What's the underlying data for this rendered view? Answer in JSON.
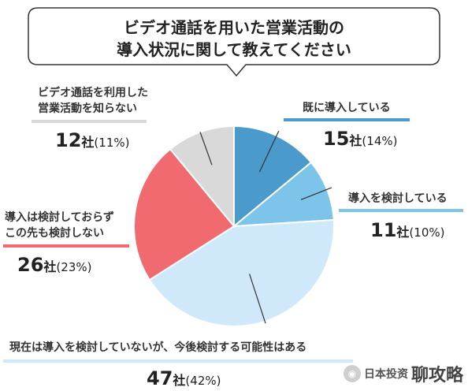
{
  "title": {
    "line1": "ビデオ通話を用いた営業活動の",
    "line2": "導入状況に関して教えてください"
  },
  "chart_data": {
    "type": "pie",
    "start_angle_deg": 0,
    "direction": "clockwise",
    "slices": [
      {
        "key": "introduced",
        "label_lines": [
          "既に導入している"
        ],
        "count": 15,
        "unit": "社",
        "percent_text": "(14%)",
        "value": 14,
        "color": "#4a9bcc",
        "underline": "#4a9bcc"
      },
      {
        "key": "considering",
        "label_lines": [
          "導入を検討している"
        ],
        "count": 11,
        "unit": "社",
        "percent_text": "(10%)",
        "value": 10,
        "color": "#7cc4ea",
        "underline": "#7cc4ea"
      },
      {
        "key": "future",
        "label_lines": [
          "現在は導入を検討していないが、今後検討する可能性はある"
        ],
        "count": 47,
        "unit": "社",
        "percent_text": "(42%)",
        "value": 42,
        "color": "#cfe9fa",
        "underline": "#cfe9fa"
      },
      {
        "key": "not_considering",
        "label_lines": [
          "導入は検討しておらず",
          "この先も検討しない"
        ],
        "count": 26,
        "unit": "社",
        "percent_text": "(23%)",
        "value": 23,
        "color": "#f06a6f",
        "underline": "#f06a6f"
      },
      {
        "key": "unaware",
        "label_lines": [
          "ビデオ通話を利用した",
          "営業活動を知らない"
        ],
        "count": 12,
        "unit": "社",
        "percent_text": "(11%)",
        "value": 11,
        "color": "#d9d9d9",
        "underline": "#d9d9d9"
      }
    ]
  },
  "watermark": {
    "small": "日本投资",
    "big": "聊攻略",
    "icon": "wechat-logo-icon"
  }
}
